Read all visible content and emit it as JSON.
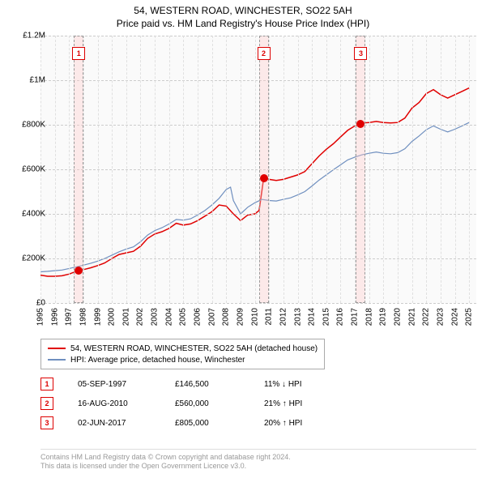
{
  "title": "54, WESTERN ROAD, WINCHESTER, SO22 5AH",
  "subtitle": "Price paid vs. HM Land Registry's House Price Index (HPI)",
  "chart": {
    "type": "line",
    "background_color": "#fafafa",
    "grid_color": "#cccccc",
    "y": {
      "min": 0,
      "max": 1200000,
      "ticks": [
        0,
        200000,
        400000,
        600000,
        800000,
        1000000,
        1200000
      ],
      "labels": [
        "£0",
        "£200K",
        "£400K",
        "£600K",
        "£800K",
        "£1M",
        "£1.2M"
      ]
    },
    "x": {
      "min": 1995,
      "max": 2025.5,
      "ticks": [
        1995,
        1996,
        1997,
        1998,
        1999,
        2000,
        2001,
        2002,
        2003,
        2004,
        2005,
        2006,
        2007,
        2008,
        2009,
        2010,
        2011,
        2012,
        2013,
        2014,
        2015,
        2016,
        2017,
        2018,
        2019,
        2020,
        2021,
        2022,
        2023,
        2024,
        2025
      ],
      "labels_fontsize": 10
    },
    "series": [
      {
        "name": "price_paid",
        "label": "54, WESTERN ROAD, WINCHESTER, SO22 5AH (detached house)",
        "color": "#e00000",
        "width": 1.5,
        "points": [
          [
            1995.0,
            125000
          ],
          [
            1995.5,
            120000
          ],
          [
            1996.0,
            120000
          ],
          [
            1996.5,
            122000
          ],
          [
            1997.0,
            130000
          ],
          [
            1997.68,
            146500
          ],
          [
            1998.0,
            150000
          ],
          [
            1998.5,
            158000
          ],
          [
            1999.0,
            168000
          ],
          [
            1999.5,
            180000
          ],
          [
            2000.0,
            200000
          ],
          [
            2000.5,
            218000
          ],
          [
            2001.0,
            225000
          ],
          [
            2001.5,
            232000
          ],
          [
            2002.0,
            255000
          ],
          [
            2002.5,
            290000
          ],
          [
            2003.0,
            310000
          ],
          [
            2003.5,
            320000
          ],
          [
            2004.0,
            335000
          ],
          [
            2004.5,
            358000
          ],
          [
            2005.0,
            350000
          ],
          [
            2005.5,
            355000
          ],
          [
            2006.0,
            370000
          ],
          [
            2006.5,
            390000
          ],
          [
            2007.0,
            410000
          ],
          [
            2007.5,
            440000
          ],
          [
            2008.0,
            435000
          ],
          [
            2008.5,
            400000
          ],
          [
            2009.0,
            370000
          ],
          [
            2009.5,
            395000
          ],
          [
            2010.0,
            400000
          ],
          [
            2010.3,
            415000
          ],
          [
            2010.62,
            560000
          ],
          [
            2011.0,
            555000
          ],
          [
            2011.5,
            550000
          ],
          [
            2012.0,
            555000
          ],
          [
            2012.5,
            565000
          ],
          [
            2013.0,
            575000
          ],
          [
            2013.5,
            590000
          ],
          [
            2014.0,
            625000
          ],
          [
            2014.5,
            660000
          ],
          [
            2015.0,
            690000
          ],
          [
            2015.5,
            715000
          ],
          [
            2016.0,
            745000
          ],
          [
            2016.5,
            775000
          ],
          [
            2017.0,
            795000
          ],
          [
            2017.42,
            805000
          ],
          [
            2017.5,
            808000
          ],
          [
            2018.0,
            810000
          ],
          [
            2018.5,
            815000
          ],
          [
            2019.0,
            810000
          ],
          [
            2019.5,
            808000
          ],
          [
            2020.0,
            810000
          ],
          [
            2020.5,
            830000
          ],
          [
            2021.0,
            875000
          ],
          [
            2021.5,
            900000
          ],
          [
            2022.0,
            940000
          ],
          [
            2022.5,
            958000
          ],
          [
            2023.0,
            935000
          ],
          [
            2023.5,
            920000
          ],
          [
            2024.0,
            935000
          ],
          [
            2024.5,
            950000
          ],
          [
            2025.0,
            965000
          ]
        ]
      },
      {
        "name": "hpi",
        "label": "HPI: Average price, detached house, Winchester",
        "color": "#6f8fbf",
        "width": 1.2,
        "points": [
          [
            1995.0,
            140000
          ],
          [
            1995.5,
            142000
          ],
          [
            1996.0,
            145000
          ],
          [
            1996.5,
            148000
          ],
          [
            1997.0,
            155000
          ],
          [
            1997.5,
            162000
          ],
          [
            1998.0,
            170000
          ],
          [
            1998.5,
            178000
          ],
          [
            1999.0,
            188000
          ],
          [
            1999.5,
            200000
          ],
          [
            2000.0,
            215000
          ],
          [
            2000.5,
            230000
          ],
          [
            2001.0,
            242000
          ],
          [
            2001.5,
            252000
          ],
          [
            2002.0,
            275000
          ],
          [
            2002.5,
            305000
          ],
          [
            2003.0,
            325000
          ],
          [
            2003.5,
            338000
          ],
          [
            2004.0,
            355000
          ],
          [
            2004.5,
            375000
          ],
          [
            2005.0,
            372000
          ],
          [
            2005.5,
            378000
          ],
          [
            2006.0,
            395000
          ],
          [
            2006.5,
            415000
          ],
          [
            2007.0,
            440000
          ],
          [
            2007.5,
            470000
          ],
          [
            2008.0,
            510000
          ],
          [
            2008.3,
            520000
          ],
          [
            2008.5,
            460000
          ],
          [
            2009.0,
            400000
          ],
          [
            2009.5,
            430000
          ],
          [
            2010.0,
            450000
          ],
          [
            2010.5,
            465000
          ],
          [
            2011.0,
            460000
          ],
          [
            2011.5,
            458000
          ],
          [
            2012.0,
            465000
          ],
          [
            2012.5,
            472000
          ],
          [
            2013.0,
            485000
          ],
          [
            2013.5,
            500000
          ],
          [
            2014.0,
            525000
          ],
          [
            2014.5,
            552000
          ],
          [
            2015.0,
            575000
          ],
          [
            2015.5,
            598000
          ],
          [
            2016.0,
            620000
          ],
          [
            2016.5,
            642000
          ],
          [
            2017.0,
            655000
          ],
          [
            2017.5,
            665000
          ],
          [
            2018.0,
            672000
          ],
          [
            2018.5,
            678000
          ],
          [
            2019.0,
            672000
          ],
          [
            2019.5,
            670000
          ],
          [
            2020.0,
            675000
          ],
          [
            2020.5,
            692000
          ],
          [
            2021.0,
            725000
          ],
          [
            2021.5,
            750000
          ],
          [
            2022.0,
            778000
          ],
          [
            2022.5,
            795000
          ],
          [
            2023.0,
            780000
          ],
          [
            2023.5,
            768000
          ],
          [
            2024.0,
            780000
          ],
          [
            2024.5,
            795000
          ],
          [
            2025.0,
            810000
          ]
        ]
      }
    ],
    "sale_markers": [
      {
        "n": "1",
        "x": 1997.68,
        "y": 146500
      },
      {
        "n": "2",
        "x": 2010.62,
        "y": 560000
      },
      {
        "n": "3",
        "x": 2017.42,
        "y": 805000
      }
    ]
  },
  "legend": {
    "items": [
      {
        "color": "#e00000",
        "label": "54, WESTERN ROAD, WINCHESTER, SO22 5AH (detached house)"
      },
      {
        "color": "#6f8fbf",
        "label": "HPI: Average price, detached house, Winchester"
      }
    ]
  },
  "sales": [
    {
      "n": "1",
      "date": "05-SEP-1997",
      "price": "£146,500",
      "delta": "11% ↓ HPI"
    },
    {
      "n": "2",
      "date": "16-AUG-2010",
      "price": "£560,000",
      "delta": "21% ↑ HPI"
    },
    {
      "n": "3",
      "date": "02-JUN-2017",
      "price": "£805,000",
      "delta": "20% ↑ HPI"
    }
  ],
  "footer": {
    "line1": "Contains HM Land Registry data © Crown copyright and database right 2024.",
    "line2": "This data is licensed under the Open Government Licence v3.0."
  }
}
